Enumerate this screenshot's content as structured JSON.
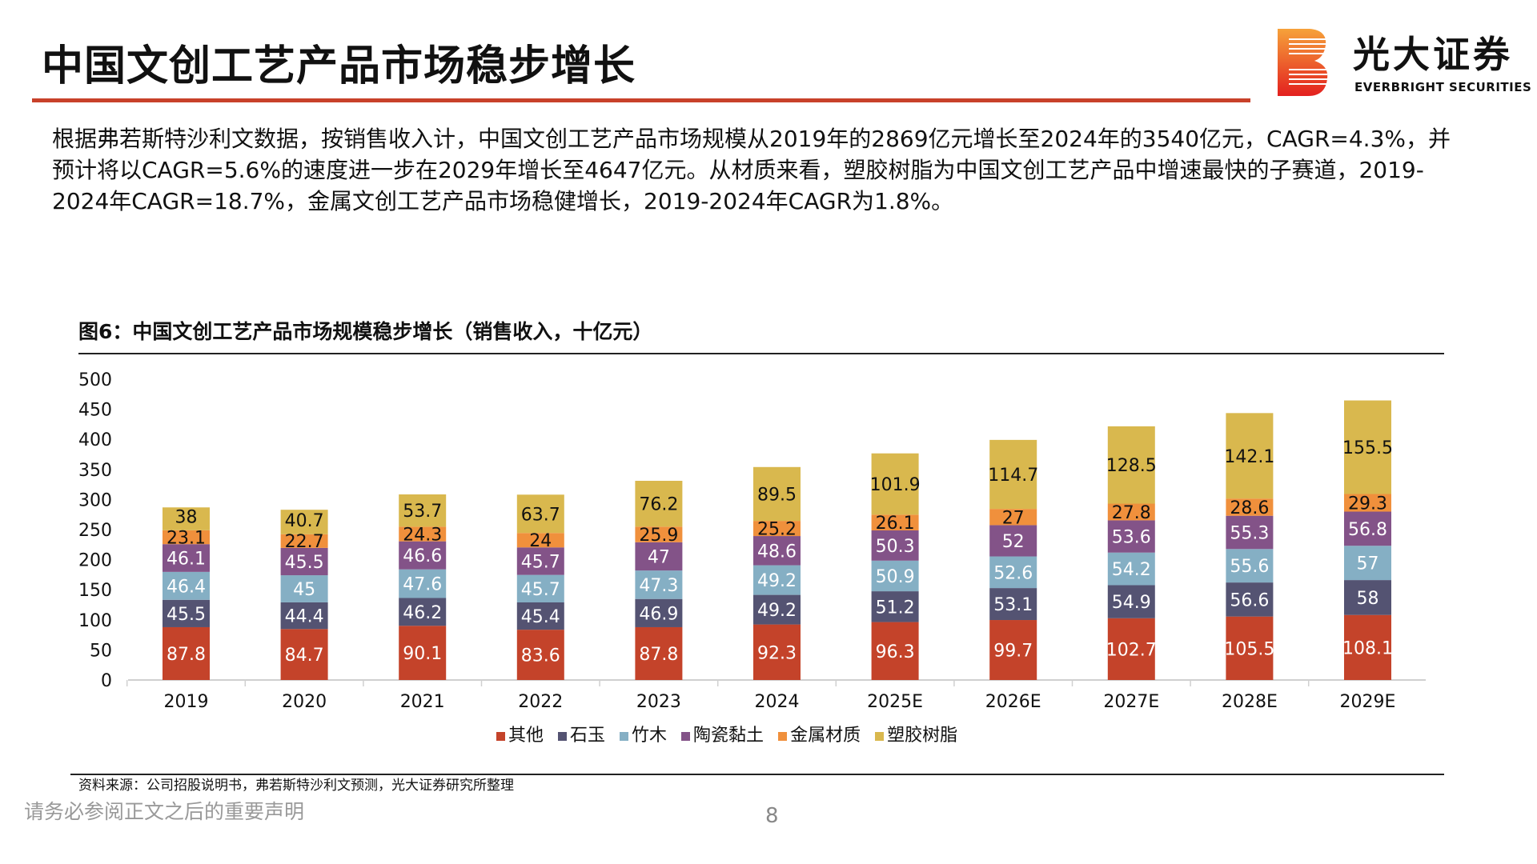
{
  "header": {
    "title": "中国文创工艺产品市场稳步增长",
    "logo_cn": "光大证券",
    "logo_en": "EVERBRIGHT SECURITIES"
  },
  "summary": "根据弗若斯特沙利文数据，按销售收入计，中国文创工艺产品市场规模从2019年的2869亿元增长至2024年的3540亿元，CAGR=4.3%，并预计将以CAGR=5.6%的速度进一步在2029年增长至4647亿元。从材质来看，塑胶树脂为中国文创工艺产品中增速最快的子赛道，2019-2024年CAGR=18.7%，金属文创工艺产品市场稳健增长，2019-2024年CAGR为1.8%。",
  "chart_data": {
    "type": "bar",
    "stacked": true,
    "title": "图6：中国文创工艺产品市场规模稳步增长（销售收入，十亿元）",
    "categories": [
      "2019",
      "2020",
      "2021",
      "2022",
      "2023",
      "2024",
      "2025E",
      "2026E",
      "2027E",
      "2028E",
      "2029E"
    ],
    "ylim": [
      0,
      500
    ],
    "yticks": [
      0,
      50,
      100,
      150,
      200,
      250,
      300,
      350,
      400,
      450,
      500
    ],
    "legend": "bottom",
    "grid": false,
    "series": [
      {
        "name": "其他",
        "color": "#C4432A",
        "values": [
          87.8,
          84.7,
          90.1,
          83.6,
          87.8,
          92.3,
          96.3,
          99.7,
          102.7,
          105.5,
          108.1
        ]
      },
      {
        "name": "石玉",
        "color": "#545372",
        "values": [
          45.5,
          44.4,
          46.2,
          45.4,
          46.9,
          49.2,
          51.2,
          53.1,
          54.9,
          56.6,
          58
        ]
      },
      {
        "name": "竹木",
        "color": "#85AFC4",
        "values": [
          46.4,
          45,
          47.6,
          45.7,
          47.3,
          49.2,
          50.9,
          52.6,
          54.2,
          55.6,
          57
        ]
      },
      {
        "name": "陶瓷黏土",
        "color": "#835388",
        "values": [
          46.1,
          45.5,
          46.6,
          45.7,
          47,
          48.6,
          50.3,
          52,
          53.6,
          55.3,
          56.8
        ]
      },
      {
        "name": "金属材质",
        "color": "#F0903C",
        "values": [
          23.1,
          22.7,
          24.3,
          24,
          25.9,
          25.2,
          26.1,
          27,
          27.8,
          28.6,
          29.3
        ]
      },
      {
        "name": "塑胶树脂",
        "color": "#D9B84E",
        "values": [
          38,
          40.7,
          53.7,
          63.7,
          76.2,
          89.5,
          101.9,
          114.7,
          128.5,
          142.1,
          155.5
        ]
      }
    ]
  },
  "source": "资料来源：公司招股说明书，弗若斯特沙利文预测，光大证券研究所整理",
  "footer": {
    "disclaimer": "请务必参阅正文之后的重要声明",
    "page": "8"
  }
}
